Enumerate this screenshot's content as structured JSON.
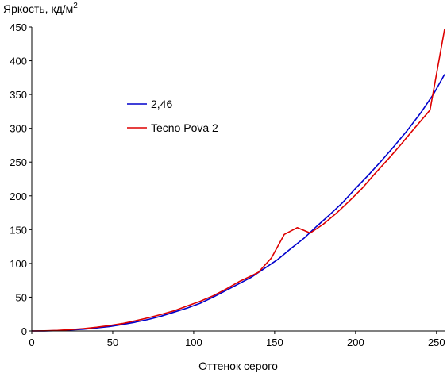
{
  "chart_data": {
    "type": "line",
    "title": "",
    "ylabel": "Яркость, кд/м",
    "ylabel_superscript": "2",
    "xlabel": "Оттенок серого",
    "xlim": [
      0,
      255
    ],
    "ylim": [
      0,
      450
    ],
    "xticks": [
      0,
      50,
      100,
      150,
      200,
      250
    ],
    "yticks": [
      0,
      50,
      100,
      150,
      200,
      250,
      300,
      350,
      400,
      450
    ],
    "grid": false,
    "legend_position": "upper-left-center",
    "series": [
      {
        "name": "2,46",
        "color": "#0000cc",
        "x": [
          0,
          8,
          16,
          24,
          32,
          40,
          48,
          56,
          64,
          72,
          80,
          88,
          96,
          104,
          112,
          120,
          128,
          136,
          144,
          152,
          160,
          168,
          176,
          184,
          192,
          200,
          208,
          216,
          224,
          232,
          240,
          248,
          255
        ],
        "y": [
          0,
          0.1,
          0.5,
          1.5,
          2.6,
          4.5,
          6.6,
          9.6,
          13,
          17,
          22,
          28,
          34,
          41,
          50,
          60,
          70,
          80,
          93,
          106,
          122,
          137,
          155,
          172,
          190,
          211,
          231,
          252,
          274,
          297,
          322,
          350,
          380
        ]
      },
      {
        "name": "Tecno Pova 2",
        "color": "#dd0000",
        "x": [
          0,
          8,
          16,
          24,
          32,
          40,
          48,
          56,
          64,
          72,
          80,
          88,
          96,
          104,
          112,
          120,
          128,
          136,
          140,
          148,
          156,
          164,
          172,
          180,
          188,
          196,
          204,
          212,
          220,
          228,
          236,
          246,
          255
        ],
        "y": [
          0,
          0.2,
          0.8,
          2,
          3.5,
          5.5,
          8,
          11,
          15,
          19.5,
          24.5,
          30,
          37,
          44,
          52,
          62,
          73,
          82,
          87,
          108,
          143,
          153,
          145,
          158,
          174,
          192,
          211,
          233,
          254,
          276,
          299,
          327,
          447
        ]
      }
    ]
  }
}
